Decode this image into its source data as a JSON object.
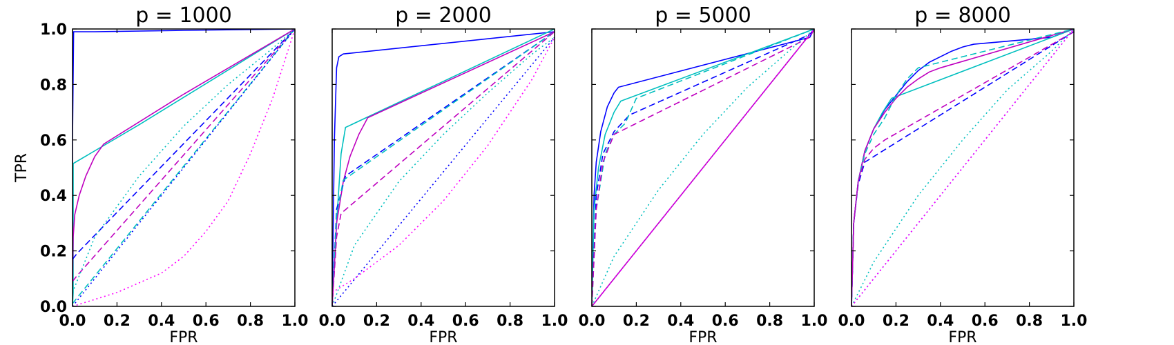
{
  "chart_data": [
    {
      "type": "line",
      "title": "p = 1000",
      "xlabel": "FPR",
      "ylabel": "TPR",
      "xlim": [
        0,
        1
      ],
      "ylim": [
        0,
        1
      ],
      "xticks": [
        "0.0",
        "0.2",
        "0.4",
        "0.6",
        "0.8",
        "1.0"
      ],
      "yticks": [
        "0.0",
        "0.2",
        "0.4",
        "0.6",
        "0.8",
        "1.0"
      ],
      "grid": false,
      "series": [
        {
          "color": "#0000ff",
          "style": "solid",
          "x": [
            0,
            0,
            0.005,
            0.1,
            0.5,
            1.0
          ],
          "y": [
            0,
            0.6,
            0.99,
            0.99,
            0.995,
            1.0
          ]
        },
        {
          "color": "#00bfbf",
          "style": "solid",
          "x": [
            0,
            0.003,
            0.003,
            0.3,
            1.0
          ],
          "y": [
            0,
            0.05,
            0.515,
            0.655,
            1.0
          ]
        },
        {
          "color": "#bf00bf",
          "style": "solid",
          "x": [
            0,
            0.003,
            0.01,
            0.03,
            0.06,
            0.1,
            0.14,
            0.5,
            1.0
          ],
          "y": [
            0.08,
            0.25,
            0.33,
            0.4,
            0.47,
            0.54,
            0.585,
            0.765,
            1.0
          ]
        },
        {
          "color": "#0000ff",
          "style": "dashed",
          "x": [
            0,
            0.02,
            1.0
          ],
          "y": [
            0.17,
            0.19,
            1.0
          ]
        },
        {
          "color": "#bf00bf",
          "style": "dashed",
          "x": [
            0,
            0.02,
            1.0
          ],
          "y": [
            0.09,
            0.11,
            1.0
          ]
        },
        {
          "color": "#00bfbf",
          "style": "dashed",
          "x": [
            0,
            0.02,
            1.0
          ],
          "y": [
            0.01,
            0.03,
            1.0
          ]
        },
        {
          "color": "#00bfbf",
          "style": "dotted",
          "x": [
            0,
            0.1,
            0.3,
            0.5,
            0.7,
            0.9,
            1.0
          ],
          "y": [
            0.05,
            0.25,
            0.47,
            0.65,
            0.8,
            0.93,
            1.0
          ]
        },
        {
          "color": "#0000ff",
          "style": "dotted",
          "x": [
            0,
            1.0
          ],
          "y": [
            0,
            1.0
          ]
        },
        {
          "color": "#ff00ff",
          "style": "dotted",
          "x": [
            0,
            0.2,
            0.4,
            0.5,
            0.6,
            0.7,
            0.8,
            0.9,
            1.0
          ],
          "y": [
            0,
            0.05,
            0.12,
            0.18,
            0.27,
            0.38,
            0.55,
            0.75,
            1.0
          ]
        }
      ]
    },
    {
      "type": "line",
      "title": "p = 2000",
      "xlabel": "FPR",
      "ylabel": "",
      "xlim": [
        0,
        1
      ],
      "ylim": [
        0,
        1
      ],
      "xticks": [
        "0.0",
        "0.2",
        "0.4",
        "0.6",
        "0.8",
        "1.0"
      ],
      "yticks": [],
      "grid": false,
      "series": [
        {
          "color": "#0000ff",
          "style": "solid",
          "x": [
            0,
            0.01,
            0.02,
            0.03,
            0.05,
            1.0
          ],
          "y": [
            0,
            0.6,
            0.86,
            0.9,
            0.91,
            0.99
          ]
        },
        {
          "color": "#00bfbf",
          "style": "solid",
          "x": [
            0,
            0.02,
            0.04,
            0.06,
            1.0
          ],
          "y": [
            0,
            0.3,
            0.55,
            0.645,
            1.0
          ]
        },
        {
          "color": "#bf00bf",
          "style": "solid",
          "x": [
            0,
            0.02,
            0.05,
            0.08,
            0.12,
            0.16,
            1.0
          ],
          "y": [
            0,
            0.3,
            0.45,
            0.54,
            0.62,
            0.68,
            0.99
          ]
        },
        {
          "color": "#0000ff",
          "style": "dashed",
          "x": [
            0,
            0.02,
            0.06,
            1.0
          ],
          "y": [
            0,
            0.35,
            0.47,
            0.99
          ]
        },
        {
          "color": "#00bfbf",
          "style": "dashed",
          "x": [
            0,
            0.02,
            0.05,
            1.0
          ],
          "y": [
            0,
            0.33,
            0.455,
            0.99
          ]
        },
        {
          "color": "#bf00bf",
          "style": "dashed",
          "x": [
            0,
            0.02,
            0.04,
            1.0
          ],
          "y": [
            0,
            0.25,
            0.335,
            0.99
          ]
        },
        {
          "color": "#00bfbf",
          "style": "dotted",
          "x": [
            0,
            0.1,
            0.3,
            0.5,
            0.7,
            0.9,
            1.0
          ],
          "y": [
            0,
            0.22,
            0.45,
            0.62,
            0.77,
            0.91,
            0.97
          ]
        },
        {
          "color": "#0000ff",
          "style": "dotted",
          "x": [
            0,
            1.0
          ],
          "y": [
            0,
            0.97
          ]
        },
        {
          "color": "#ff00ff",
          "style": "dotted",
          "x": [
            0,
            0.1,
            0.3,
            0.5,
            0.7,
            0.9,
            1.0
          ],
          "y": [
            0.05,
            0.1,
            0.22,
            0.38,
            0.58,
            0.82,
            0.97
          ]
        }
      ]
    },
    {
      "type": "line",
      "title": "p = 5000",
      "xlabel": "FPR",
      "ylabel": "",
      "xlim": [
        0,
        1
      ],
      "ylim": [
        0,
        1
      ],
      "xticks": [
        "0.0",
        "0.2",
        "0.4",
        "0.6",
        "0.8",
        "1.0"
      ],
      "yticks": [],
      "grid": false,
      "series": [
        {
          "color": "#0000ff",
          "style": "solid",
          "x": [
            0,
            0.01,
            0.02,
            0.04,
            0.07,
            0.1,
            0.12,
            0.98,
            1.0
          ],
          "y": [
            0,
            0.4,
            0.52,
            0.63,
            0.72,
            0.77,
            0.79,
            0.97,
            1.0
          ]
        },
        {
          "color": "#00bfbf",
          "style": "solid",
          "x": [
            0,
            0.01,
            0.03,
            0.06,
            0.1,
            0.13,
            1.0
          ],
          "y": [
            0,
            0.35,
            0.5,
            0.62,
            0.7,
            0.74,
            1.0
          ]
        },
        {
          "color": "#bf00bf",
          "style": "solid",
          "x": [
            0,
            1.0
          ],
          "y": [
            0,
            1.0
          ]
        },
        {
          "color": "#0000ff",
          "style": "dashed",
          "x": [
            0,
            0.02,
            0.05,
            0.1,
            0.17,
            0.98,
            1.0
          ],
          "y": [
            0,
            0.4,
            0.55,
            0.63,
            0.69,
            0.98,
            1.0
          ]
        },
        {
          "color": "#00bfbf",
          "style": "dashed",
          "x": [
            0,
            0.02,
            0.06,
            0.1,
            0.15,
            0.2,
            1.0
          ],
          "y": [
            0,
            0.35,
            0.55,
            0.62,
            0.66,
            0.75,
            1.0
          ]
        },
        {
          "color": "#bf00bf",
          "style": "dashed",
          "x": [
            0,
            0.02,
            0.05,
            0.1,
            0.98,
            1.0
          ],
          "y": [
            0,
            0.35,
            0.52,
            0.62,
            0.97,
            1.0
          ]
        },
        {
          "color": "#00bfbf",
          "style": "dotted",
          "x": [
            0,
            0.1,
            0.3,
            0.5,
            0.7,
            0.9,
            1.0
          ],
          "y": [
            0,
            0.18,
            0.42,
            0.62,
            0.79,
            0.93,
            1.0
          ]
        },
        {
          "color": "#0000ff",
          "style": "dotted",
          "x": [
            0,
            1.0
          ],
          "y": [
            0,
            1.0
          ]
        },
        {
          "color": "#ff00ff",
          "style": "dotted",
          "x": [
            0,
            1.0
          ],
          "y": [
            0,
            1.0
          ]
        }
      ]
    },
    {
      "type": "line",
      "title": "p = 8000",
      "xlabel": "FPR",
      "ylabel": "",
      "xlim": [
        0,
        1
      ],
      "ylim": [
        0,
        1
      ],
      "xticks": [
        "0.0",
        "0.2",
        "0.4",
        "0.6",
        "0.8",
        "1.0"
      ],
      "yticks": [],
      "grid": false,
      "series": [
        {
          "color": "#0000ff",
          "style": "solid",
          "x": [
            0,
            0.01,
            0.03,
            0.06,
            0.1,
            0.15,
            0.2,
            0.25,
            0.3,
            0.35,
            0.4,
            0.45,
            0.5,
            0.55,
            0.9,
            1.0
          ],
          "y": [
            0,
            0.3,
            0.45,
            0.56,
            0.64,
            0.71,
            0.76,
            0.81,
            0.85,
            0.88,
            0.9,
            0.92,
            0.935,
            0.945,
            0.97,
            1.0
          ]
        },
        {
          "color": "#00bfbf",
          "style": "solid",
          "x": [
            0,
            0.01,
            0.03,
            0.06,
            0.1,
            0.14,
            0.18,
            1.0
          ],
          "y": [
            0,
            0.3,
            0.45,
            0.56,
            0.64,
            0.7,
            0.75,
            1.0
          ]
        },
        {
          "color": "#bf00bf",
          "style": "solid",
          "x": [
            0,
            0.01,
            0.03,
            0.06,
            0.1,
            0.15,
            0.2,
            0.25,
            0.3,
            0.35,
            0.4,
            1.0
          ],
          "y": [
            0,
            0.3,
            0.45,
            0.56,
            0.64,
            0.7,
            0.75,
            0.79,
            0.82,
            0.845,
            0.86,
            1.0
          ]
        },
        {
          "color": "#0000ff",
          "style": "dashed",
          "x": [
            0,
            0.01,
            0.03,
            0.06,
            0.1,
            1.0
          ],
          "y": [
            0,
            0.3,
            0.44,
            0.52,
            0.54,
            0.99
          ]
        },
        {
          "color": "#00bfbf",
          "style": "dashed",
          "x": [
            0,
            0.01,
            0.03,
            0.06,
            0.1,
            0.15,
            0.2,
            0.25,
            0.3,
            0.4,
            1.0
          ],
          "y": [
            0,
            0.3,
            0.45,
            0.55,
            0.62,
            0.68,
            0.76,
            0.82,
            0.86,
            0.88,
            1.0
          ]
        },
        {
          "color": "#bf00bf",
          "style": "dashed",
          "x": [
            0,
            0.01,
            0.03,
            0.06,
            0.1,
            0.15,
            1.0
          ],
          "y": [
            0,
            0.3,
            0.45,
            0.53,
            0.57,
            0.6,
            0.99
          ]
        },
        {
          "color": "#00bfbf",
          "style": "dotted",
          "x": [
            0,
            0.1,
            0.3,
            0.5,
            0.7,
            0.9,
            1.0
          ],
          "y": [
            0,
            0.16,
            0.4,
            0.6,
            0.78,
            0.92,
            1.0
          ]
        },
        {
          "color": "#0000ff",
          "style": "dotted",
          "x": [
            0,
            1.0
          ],
          "y": [
            0,
            1.0
          ]
        },
        {
          "color": "#ff00ff",
          "style": "dotted",
          "x": [
            0,
            1.0
          ],
          "y": [
            0,
            1.0
          ]
        }
      ]
    }
  ]
}
